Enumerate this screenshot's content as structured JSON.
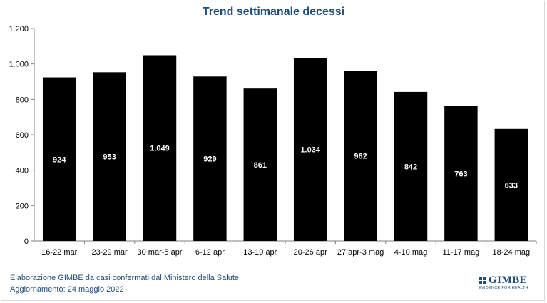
{
  "chart_data": {
    "type": "bar",
    "title": "Trend settimanale decessi",
    "categories": [
      "16-22 mar",
      "23-29 mar",
      "30 mar-5 apr",
      "6-12 apr",
      "13-19 apr",
      "20-26 apr",
      "27 apr-3 mag",
      "4-10 mag",
      "11-17 mag",
      "18-24 mag"
    ],
    "values": [
      924,
      953,
      1049,
      929,
      861,
      1034,
      962,
      842,
      763,
      633
    ],
    "value_labels": [
      "924",
      "953",
      "1.049",
      "929",
      "861",
      "1.034",
      "962",
      "842",
      "763",
      "633"
    ],
    "ylim": [
      0,
      1200
    ],
    "yticks": [
      0,
      200,
      400,
      600,
      800,
      1000,
      1200
    ],
    "ytick_labels": [
      "0",
      "200",
      "400",
      "600",
      "800",
      "1.000",
      "1.200"
    ],
    "xlabel": "",
    "ylabel": "",
    "grid": false,
    "legend": "none",
    "bar_color": "#000000",
    "label_color": "#ffffff"
  },
  "colors": {
    "title": "#1f4e79",
    "footer": "#1f4e79"
  },
  "footer": {
    "line1": "Elaborazione GIMBE da casi confermati dal Ministero della Salute",
    "line2": "Aggiornamento: 24 maggio 2022"
  },
  "logo": {
    "name": "GIMBE",
    "tagline": "EVIDENCE FOR HEALTH",
    "icon": "gimbe-grid-icon"
  }
}
